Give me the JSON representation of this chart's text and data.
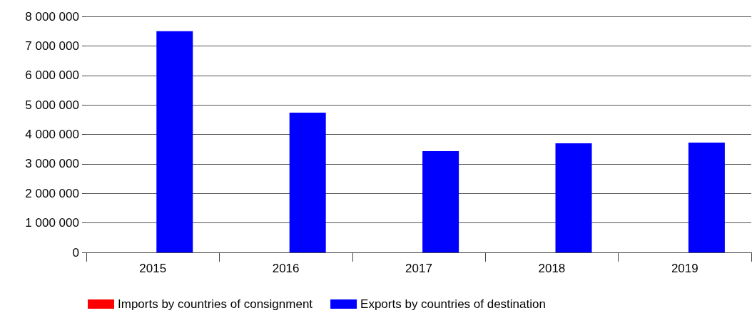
{
  "chart_data": {
    "type": "bar",
    "categories": [
      "2015",
      "2016",
      "2017",
      "2018",
      "2019"
    ],
    "series": [
      {
        "name": "Imports by countries of consignment",
        "color": "#ff0000",
        "values": [
          0,
          0,
          0,
          0,
          0
        ]
      },
      {
        "name": "Exports by countries of destination",
        "color": "#0000ff",
        "values": [
          7500000,
          4740000,
          3430000,
          3700000,
          3720000
        ]
      }
    ],
    "ylim": [
      0,
      8000000
    ],
    "yticks": [
      {
        "value": 0,
        "label": "0"
      },
      {
        "value": 1000000,
        "label": "1 000 000"
      },
      {
        "value": 2000000,
        "label": "2 000 000"
      },
      {
        "value": 3000000,
        "label": "3 000 000"
      },
      {
        "value": 4000000,
        "label": "4 000 000"
      },
      {
        "value": 5000000,
        "label": "5 000 000"
      },
      {
        "value": 6000000,
        "label": "6 000 000"
      },
      {
        "value": 7000000,
        "label": "7 000 000"
      },
      {
        "value": 8000000,
        "label": "8 000 000"
      }
    ],
    "grid": "y",
    "legend": "bottom left"
  }
}
